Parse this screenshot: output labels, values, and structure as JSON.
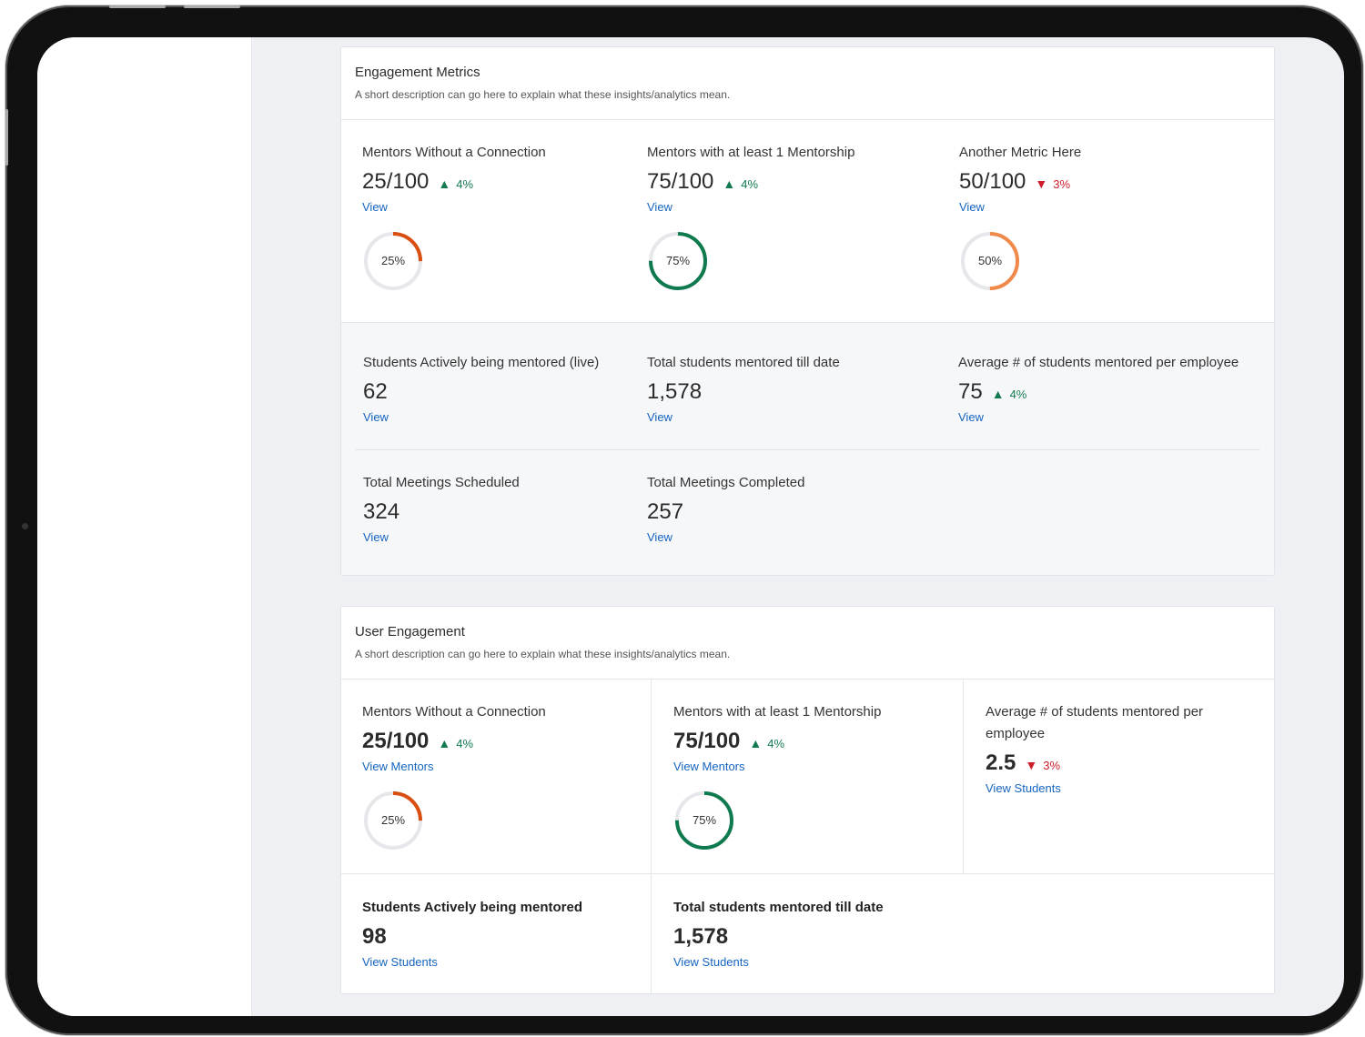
{
  "engagement_metrics": {
    "title": "Engagement Metrics",
    "description": "A short description can go here to explain what these insights/analytics mean.",
    "top": [
      {
        "label": "Mentors Without a Connection",
        "value": "25/100",
        "delta": "4%",
        "direction": "up",
        "link": "View",
        "percent": 25,
        "percent_label": "25%",
        "color": "#d94f12"
      },
      {
        "label": "Mentors with at least 1 Mentorship",
        "value": "75/100",
        "delta": "4%",
        "direction": "up",
        "link": "View",
        "percent": 75,
        "percent_label": "75%",
        "color": "#0f7a4e"
      },
      {
        "label": "Another Metric Here",
        "value": "50/100",
        "delta": "3%",
        "direction": "down",
        "link": "View",
        "percent": 50,
        "percent_label": "50%",
        "color": "#f08a4b"
      }
    ],
    "stats_row1": [
      {
        "label": "Students Actively being mentored (live)",
        "value": "62",
        "link": "View"
      },
      {
        "label": "Total students mentored till date",
        "value": "1,578",
        "link": "View"
      },
      {
        "label": "Average # of students mentored per employee",
        "value": "75",
        "delta": "4%",
        "direction": "up",
        "link": "View"
      }
    ],
    "stats_row2": [
      {
        "label": "Total Meetings Scheduled",
        "value": "324",
        "link": "View"
      },
      {
        "label": "Total Meetings Completed",
        "value": "257",
        "link": "View"
      }
    ]
  },
  "user_engagement": {
    "title": "User Engagement",
    "description": "A short description can go here to explain what these insights/analytics mean.",
    "top": [
      {
        "label": "Mentors Without a Connection",
        "value": "25/100",
        "delta": "4%",
        "direction": "up",
        "link": "View Mentors",
        "percent": 25,
        "percent_label": "25%",
        "color": "#d94f12"
      },
      {
        "label": "Mentors with at least 1 Mentorship",
        "value": "75/100",
        "delta": "4%",
        "direction": "up",
        "link": "View Mentors",
        "percent": 75,
        "percent_label": "75%",
        "color": "#0f7a4e"
      },
      {
        "label": "Average # of students mentored per employee",
        "value": "2.5",
        "delta": "3%",
        "direction": "down",
        "link": "View Students"
      }
    ],
    "bottom": [
      {
        "label": "Students Actively being mentored",
        "value": "98",
        "link": "View Students"
      },
      {
        "label": "Total students mentored till date",
        "value": "1,578",
        "link": "View Students"
      }
    ]
  },
  "icons": {
    "up": "triangle-up-icon",
    "down": "triangle-down-icon",
    "up_glyph": "▲",
    "down_glyph": "▼"
  }
}
